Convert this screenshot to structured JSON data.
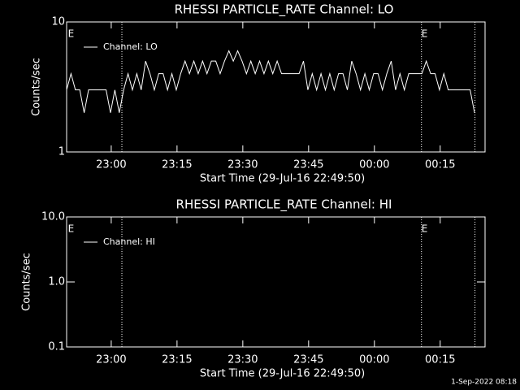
{
  "chart_data": [
    {
      "type": "line",
      "title": "RHESSI PARTICLE_RATE Channel: LO",
      "xlabel": "Start Time (29-Jul-16 22:49:50)",
      "ylabel": "Counts/sec",
      "x": [
        0,
        1,
        2,
        3,
        4,
        5,
        6,
        7,
        8,
        9,
        10,
        11,
        12,
        13,
        14,
        15,
        16,
        17,
        18,
        19,
        20,
        21,
        22,
        23,
        24,
        25,
        26,
        27,
        28,
        29,
        30,
        31,
        32,
        33,
        34,
        35,
        36,
        37,
        38,
        39,
        40,
        41,
        42,
        43,
        44,
        45,
        46,
        47,
        48,
        49,
        50,
        51,
        52,
        53,
        54,
        55,
        56,
        57,
        58,
        59,
        60,
        61,
        62,
        63,
        64,
        65,
        66,
        67,
        68,
        69,
        70,
        71,
        72,
        73,
        74,
        75,
        76,
        77,
        78,
        79,
        80,
        81,
        82,
        83,
        84,
        85,
        86,
        87,
        88,
        89,
        90,
        91,
        92,
        93
      ],
      "series": [
        {
          "name": "Channel: LO",
          "color": "#ffffff",
          "values": [
            3,
            4,
            3,
            3,
            2,
            3,
            3,
            3,
            3,
            3,
            2,
            3,
            2,
            3,
            4,
            3,
            4,
            3,
            5,
            4,
            3,
            4,
            4,
            3,
            4,
            3,
            4,
            5,
            4,
            5,
            4,
            5,
            4,
            5,
            5,
            4,
            5,
            6,
            5,
            6,
            5,
            4,
            5,
            4,
            5,
            4,
            5,
            4,
            5,
            4,
            4,
            4,
            4,
            4,
            5,
            3,
            4,
            3,
            4,
            3,
            4,
            3,
            4,
            4,
            3,
            5,
            4,
            3,
            4,
            3,
            4,
            4,
            3,
            4,
            5,
            3,
            4,
            3,
            4,
            4,
            4,
            4,
            5,
            4,
            4,
            3,
            4,
            3,
            3,
            3,
            3,
            3,
            3,
            2
          ]
        }
      ],
      "xlim": [
        0,
        95.4
      ],
      "ylim": [
        1,
        10
      ],
      "ylog": true,
      "xticks": [
        {
          "value": 10.17,
          "label": "23:00"
        },
        {
          "value": 25.17,
          "label": "23:15"
        },
        {
          "value": 40.17,
          "label": "23:30"
        },
        {
          "value": 55.17,
          "label": "23:45"
        },
        {
          "value": 70.17,
          "label": "00:00"
        },
        {
          "value": 85.17,
          "label": "00:15"
        }
      ],
      "yticks": [
        1,
        10
      ],
      "legend": "upper left",
      "event_lines": [
        12.6,
        80.9,
        93.1
      ],
      "event_labels": [
        {
          "x": 0.3,
          "label": "E"
        },
        {
          "x": 80.9,
          "label": "E"
        }
      ]
    },
    {
      "type": "line",
      "title": "RHESSI PARTICLE_RATE Channel: HI",
      "xlabel": "Start Time (29-Jul-16 22:49:50)",
      "ylabel": "Counts/sec",
      "x": [],
      "series": [
        {
          "name": "Channel: HI",
          "color": "#ffffff",
          "values": []
        }
      ],
      "xlim": [
        0,
        95.4
      ],
      "ylim": [
        0.1,
        10
      ],
      "ylog": true,
      "xticks": [
        {
          "value": 10.17,
          "label": "23:00"
        },
        {
          "value": 25.17,
          "label": "23:15"
        },
        {
          "value": 40.17,
          "label": "23:30"
        },
        {
          "value": 55.17,
          "label": "23:45"
        },
        {
          "value": 70.17,
          "label": "00:00"
        },
        {
          "value": 85.17,
          "label": "00:15"
        }
      ],
      "yticks": [
        {
          "value": 0.1,
          "label": "0.1"
        },
        {
          "value": 1,
          "label": "1.0"
        },
        {
          "value": 10,
          "label": "10.0"
        }
      ],
      "legend": "upper left",
      "event_lines": [
        12.6,
        80.9,
        93.1
      ],
      "event_labels": [
        {
          "x": 0.3,
          "label": "E"
        },
        {
          "x": 80.9,
          "label": "E"
        }
      ]
    }
  ],
  "footer": "1-Sep-2022 08:18"
}
